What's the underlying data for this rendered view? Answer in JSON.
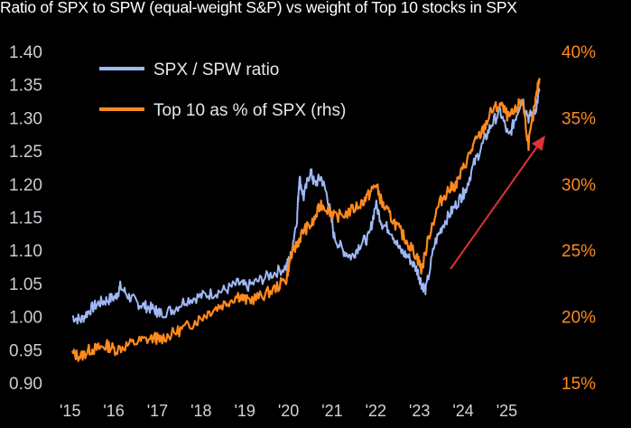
{
  "chart_data": {
    "type": "line",
    "title": "Ratio of SPX to SPW (equal-weight S&P) vs weight of Top 10 stocks in SPX",
    "x_tick_labels": [
      "'15",
      "'16",
      "'17",
      "'18",
      "'19",
      "'20",
      "'21",
      "'22",
      "'23",
      "'24",
      "'25"
    ],
    "x_tick_years": [
      2015,
      2016,
      2017,
      2018,
      2019,
      2020,
      2021,
      2022,
      2023,
      2024,
      2025
    ],
    "xlim": [
      2015.0,
      2025.75
    ],
    "y_left": {
      "ylim": [
        0.9,
        1.4
      ],
      "ticks": [
        "1.40",
        "1.35",
        "1.30",
        "1.25",
        "1.20",
        "1.15",
        "1.10",
        "1.05",
        "1.00",
        "0.95",
        "0.90"
      ]
    },
    "y_right": {
      "ylim": [
        15,
        40
      ],
      "ticks": [
        "40%",
        "35%",
        "30%",
        "25%",
        "20%",
        "15%"
      ]
    },
    "colors": {
      "ratio": "#9fb8f5",
      "top10": "#ff8a1e",
      "arrow": "#e0303a"
    },
    "series": [
      {
        "name": "SPX / SPW ratio",
        "axis": "left",
        "x": [
          2015.0,
          2015.2,
          2015.4,
          2015.6,
          2015.8,
          2016.0,
          2016.1,
          2016.3,
          2016.5,
          2016.7,
          2016.9,
          2017.0,
          2017.3,
          2017.6,
          2017.9,
          2018.2,
          2018.5,
          2018.8,
          2019.0,
          2019.3,
          2019.6,
          2019.9,
          2020.0,
          2020.15,
          2020.2,
          2020.3,
          2020.45,
          2020.55,
          2020.7,
          2020.85,
          2021.0,
          2021.2,
          2021.4,
          2021.6,
          2021.8,
          2021.95,
          2022.1,
          2022.3,
          2022.5,
          2022.7,
          2022.9,
          2023.0,
          2023.1,
          2023.3,
          2023.5,
          2023.7,
          2023.9,
          2024.0,
          2024.2,
          2024.4,
          2024.6,
          2024.8,
          2025.0,
          2025.15,
          2025.3,
          2025.45,
          2025.6,
          2025.7
        ],
        "values": [
          1.0,
          0.995,
          1.01,
          1.02,
          1.025,
          1.03,
          1.045,
          1.03,
          1.02,
          1.015,
          1.01,
          1.005,
          1.01,
          1.025,
          1.03,
          1.035,
          1.04,
          1.05,
          1.045,
          1.055,
          1.065,
          1.075,
          1.09,
          1.15,
          1.21,
          1.18,
          1.22,
          1.2,
          1.21,
          1.18,
          1.12,
          1.1,
          1.09,
          1.11,
          1.12,
          1.17,
          1.14,
          1.13,
          1.1,
          1.09,
          1.07,
          1.05,
          1.04,
          1.11,
          1.14,
          1.16,
          1.18,
          1.19,
          1.23,
          1.26,
          1.29,
          1.31,
          1.27,
          1.3,
          1.33,
          1.3,
          1.31,
          1.34
        ]
      },
      {
        "name": "Top 10 as % of SPX (rhs)",
        "axis": "right",
        "x": [
          2015.0,
          2015.2,
          2015.4,
          2015.6,
          2015.8,
          2016.0,
          2016.3,
          2016.6,
          2016.9,
          2017.0,
          2017.3,
          2017.6,
          2017.9,
          2018.2,
          2018.5,
          2018.8,
          2019.0,
          2019.3,
          2019.6,
          2019.9,
          2020.0,
          2020.15,
          2020.3,
          2020.5,
          2020.7,
          2020.9,
          2021.0,
          2021.3,
          2021.6,
          2021.8,
          2021.95,
          2022.1,
          2022.3,
          2022.5,
          2022.7,
          2022.9,
          2023.0,
          2023.2,
          2023.4,
          2023.6,
          2023.8,
          2024.0,
          2024.2,
          2024.4,
          2024.6,
          2024.8,
          2025.0,
          2025.15,
          2025.3,
          2025.45,
          2025.6,
          2025.7
        ],
        "values": [
          17.2,
          17.0,
          17.5,
          17.6,
          17.8,
          17.5,
          17.9,
          18.2,
          18.4,
          18.3,
          18.7,
          19.2,
          19.8,
          20.5,
          21.0,
          21.6,
          21.2,
          21.5,
          22.0,
          22.8,
          24.5,
          25.5,
          26.5,
          27.0,
          28.5,
          28.0,
          27.5,
          27.8,
          28.5,
          29.2,
          30.0,
          28.5,
          27.5,
          26.5,
          25.5,
          24.5,
          23.5,
          26.5,
          28.5,
          29.5,
          30.0,
          31.5,
          33.0,
          34.0,
          35.5,
          36.0,
          35.0,
          35.5,
          36.5,
          33.0,
          36.0,
          38.0
        ]
      }
    ],
    "legend": [
      "SPX / SPW ratio",
      "Top 10 as % of SPX (rhs)"
    ],
    "annotations": [
      "red upward arrow from 2023.6 to 2025.4 indicating rising trend"
    ]
  }
}
